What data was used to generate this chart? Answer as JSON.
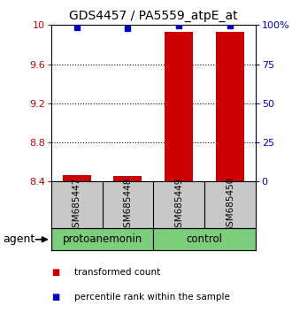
{
  "title": "GDS4457 / PA5559_atpE_at",
  "samples": [
    "GSM685447",
    "GSM685448",
    "GSM685449",
    "GSM685450"
  ],
  "bar_values": [
    8.47,
    8.46,
    9.93,
    9.93
  ],
  "percentile_values": [
    98.5,
    98.0,
    99.5,
    99.5
  ],
  "bar_color": "#cc0000",
  "dot_color": "#0000cc",
  "ylim_left": [
    8.4,
    10.0
  ],
  "ylim_right": [
    0,
    100
  ],
  "yticks_left": [
    8.4,
    8.8,
    9.2,
    9.6,
    10.0
  ],
  "ytick_labels_left": [
    "8.4",
    "8.8",
    "9.2",
    "9.6",
    "10"
  ],
  "yticks_right": [
    0,
    25,
    50,
    75,
    100
  ],
  "ytick_labels_right": [
    "0",
    "25",
    "50",
    "75",
    "100%"
  ],
  "groups": [
    {
      "label": "protoanemonin",
      "indices": [
        0,
        1
      ],
      "color": "#7CCD7C"
    },
    {
      "label": "control",
      "indices": [
        2,
        3
      ],
      "color": "#7CCD7C"
    }
  ],
  "agent_label": "agent",
  "legend": [
    {
      "color": "#cc0000",
      "label": "transformed count"
    },
    {
      "color": "#0000cc",
      "label": "percentile rank within the sample"
    }
  ],
  "bar_width": 0.55,
  "background_color": "#ffffff",
  "sample_bg": "#c8c8c8",
  "grid_yticks": [
    8.8,
    9.2,
    9.6
  ]
}
